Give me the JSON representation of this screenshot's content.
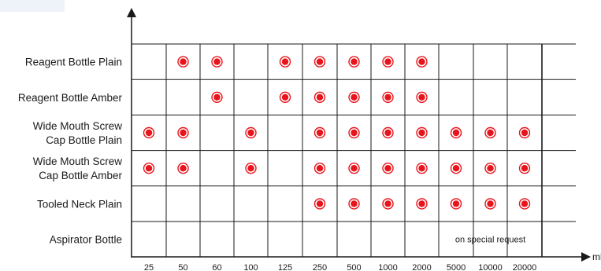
{
  "chart_data": {
    "type": "table",
    "x_unit": "ml",
    "categories": [
      "25",
      "50",
      "60",
      "100",
      "125",
      "250",
      "500",
      "1000",
      "2000",
      "5000",
      "10000",
      "20000"
    ],
    "rows": [
      {
        "label_lines": [
          "Reagent Bottle Plain"
        ],
        "available": [
          "50",
          "60",
          "125",
          "250",
          "500",
          "1000",
          "2000"
        ]
      },
      {
        "label_lines": [
          "Reagent Bottle Amber"
        ],
        "available": [
          "60",
          "125",
          "250",
          "500",
          "1000",
          "2000"
        ]
      },
      {
        "label_lines": [
          "Wide Mouth Screw",
          "Cap Bottle Plain"
        ],
        "available": [
          "25",
          "50",
          "100",
          "250",
          "500",
          "1000",
          "2000",
          "5000",
          "10000",
          "20000"
        ]
      },
      {
        "label_lines": [
          "Wide Mouth Screw",
          "Cap Bottle Amber"
        ],
        "available": [
          "25",
          "50",
          "100",
          "250",
          "500",
          "1000",
          "2000",
          "5000",
          "10000",
          "20000"
        ]
      },
      {
        "label_lines": [
          "Tooled Neck Plain"
        ],
        "available": [
          "250",
          "500",
          "1000",
          "2000",
          "5000",
          "10000",
          "20000"
        ]
      },
      {
        "label_lines": [
          "Aspirator Bottle"
        ],
        "available": []
      }
    ],
    "annotation": "on special request",
    "annotation_row": 5,
    "annotation_span": [
      "5000",
      "20000"
    ],
    "grid": true,
    "colors": {
      "marker_fill": "#e8141b",
      "marker_ring": "#e8141b",
      "grid": "#1a1a1a"
    }
  }
}
